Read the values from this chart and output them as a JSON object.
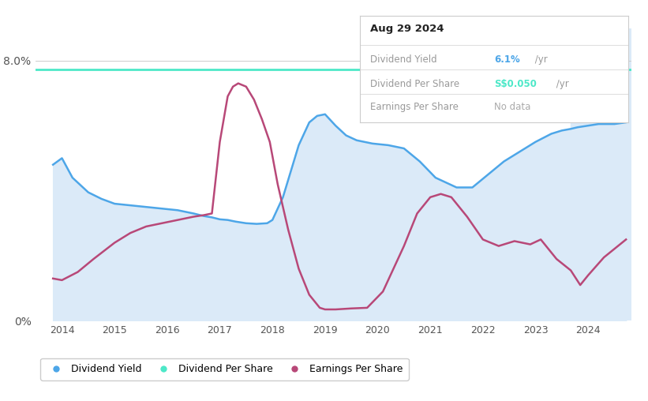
{
  "bg_color": "#ffffff",
  "plot_bg_color": "#ffffff",
  "past_shade_color": "#dbeaf8",
  "main_fill_color": "#dbeaf8",
  "dividend_yield_color": "#4da6e8",
  "dividend_per_share_color": "#4de8c8",
  "earnings_per_share_color": "#b84878",
  "past_start_x": 2023.67,
  "tooltip": {
    "date": "Aug 29 2024",
    "dividend_yield_value": "6.1%",
    "dividend_per_share_value": "S$0.050",
    "earnings_per_share_value": "No data"
  },
  "dividend_yield_x": [
    2013.83,
    2014.0,
    2014.2,
    2014.5,
    2014.75,
    2015.0,
    2015.3,
    2015.6,
    2015.9,
    2016.2,
    2016.5,
    2016.7,
    2016.85,
    2017.0,
    2017.15,
    2017.3,
    2017.5,
    2017.7,
    2017.9,
    2018.0,
    2018.2,
    2018.5,
    2018.7,
    2018.85,
    2019.0,
    2019.2,
    2019.4,
    2019.6,
    2019.9,
    2020.2,
    2020.5,
    2020.8,
    2021.1,
    2021.5,
    2021.8,
    2022.1,
    2022.4,
    2022.7,
    2023.0,
    2023.3,
    2023.5,
    2023.67,
    2023.8,
    2024.0,
    2024.2,
    2024.5,
    2024.72
  ],
  "dividend_yield_y": [
    4.8,
    5.0,
    4.4,
    3.95,
    3.75,
    3.6,
    3.55,
    3.5,
    3.45,
    3.4,
    3.3,
    3.22,
    3.18,
    3.12,
    3.1,
    3.05,
    3.0,
    2.98,
    3.0,
    3.1,
    3.8,
    5.4,
    6.1,
    6.3,
    6.35,
    6.0,
    5.7,
    5.55,
    5.45,
    5.4,
    5.3,
    4.9,
    4.4,
    4.1,
    4.1,
    4.5,
    4.9,
    5.2,
    5.5,
    5.75,
    5.85,
    5.9,
    5.95,
    6.0,
    6.05,
    6.05,
    6.1
  ],
  "dividend_per_share_y": 7.72,
  "earnings_per_share_x": [
    2013.83,
    2014.0,
    2014.3,
    2014.6,
    2015.0,
    2015.3,
    2015.6,
    2015.9,
    2016.2,
    2016.5,
    2016.7,
    2016.85,
    2017.0,
    2017.15,
    2017.25,
    2017.35,
    2017.5,
    2017.65,
    2017.8,
    2017.95,
    2018.1,
    2018.3,
    2018.5,
    2018.7,
    2018.9,
    2019.0,
    2019.2,
    2019.5,
    2019.8,
    2020.1,
    2020.5,
    2020.75,
    2021.0,
    2021.2,
    2021.4,
    2021.7,
    2022.0,
    2022.3,
    2022.6,
    2022.9,
    2023.1,
    2023.4,
    2023.67,
    2023.85,
    2024.0,
    2024.3,
    2024.72
  ],
  "earnings_per_share_y": [
    1.3,
    1.25,
    1.5,
    1.9,
    2.4,
    2.7,
    2.9,
    3.0,
    3.1,
    3.2,
    3.25,
    3.3,
    5.5,
    6.9,
    7.2,
    7.3,
    7.2,
    6.8,
    6.2,
    5.5,
    4.2,
    2.8,
    1.6,
    0.8,
    0.4,
    0.35,
    0.35,
    0.38,
    0.4,
    0.9,
    2.3,
    3.3,
    3.8,
    3.9,
    3.8,
    3.2,
    2.5,
    2.3,
    2.45,
    2.35,
    2.5,
    1.9,
    1.55,
    1.1,
    1.4,
    1.95,
    2.5
  ],
  "x_min": 2013.5,
  "x_max": 2024.83,
  "y_min": 0,
  "y_max": 9.0
}
